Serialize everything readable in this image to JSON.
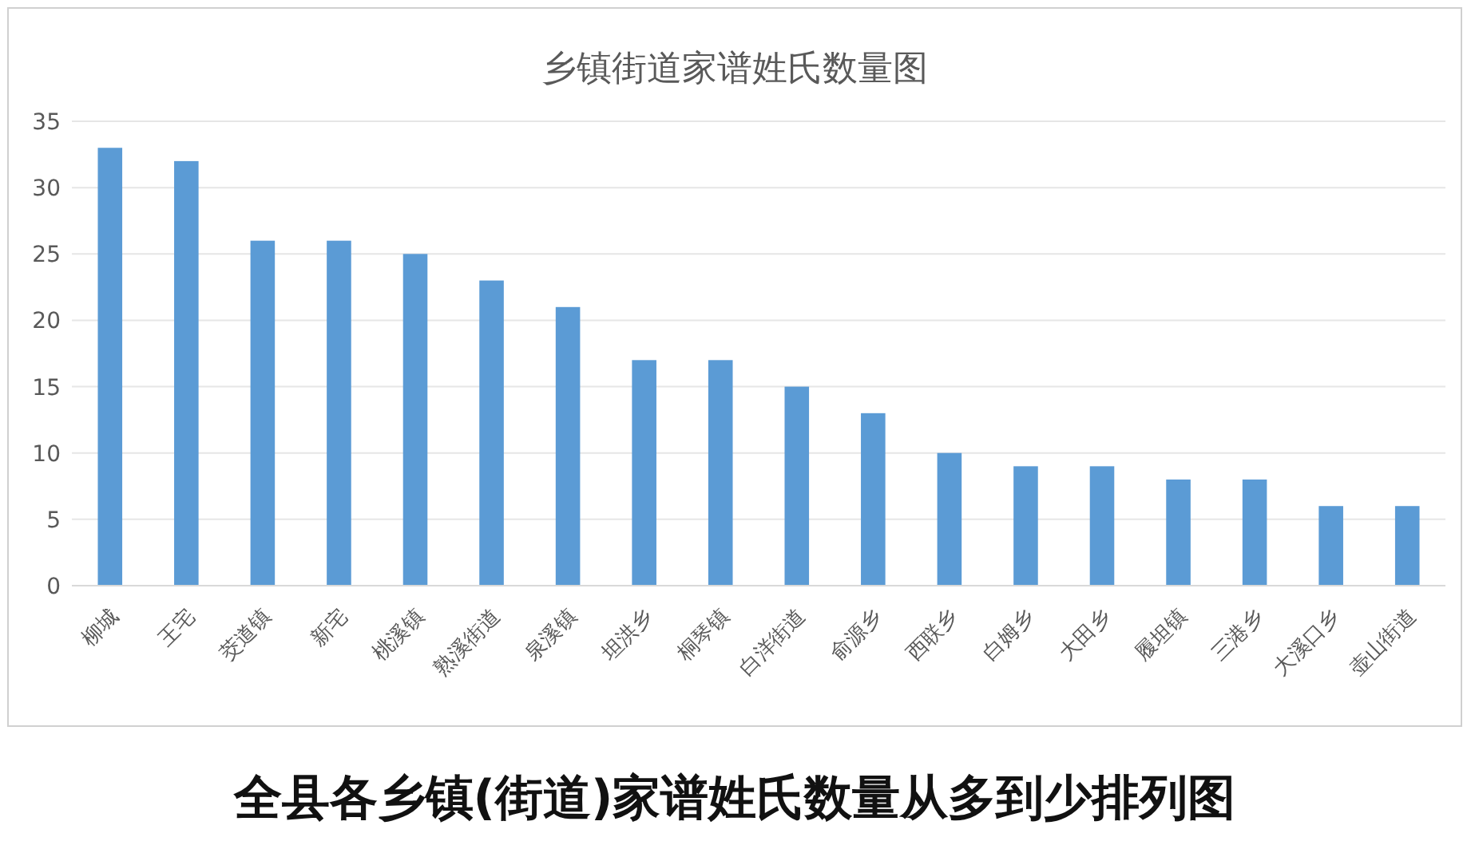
{
  "chart_data": {
    "type": "bar",
    "title": "乡镇街道家谱姓氏数量图",
    "categories": [
      "柳城",
      "王宅",
      "茭道镇",
      "新宅",
      "桃溪镇",
      "熟溪街道",
      "泉溪镇",
      "坦洪乡",
      "桐琴镇",
      "白洋街道",
      "俞源乡",
      "西联乡",
      "白姆乡",
      "大田乡",
      "履坦镇",
      "三港乡",
      "大溪口乡",
      "壶山街道"
    ],
    "values": [
      33,
      32,
      26,
      26,
      25,
      23,
      21,
      17,
      17,
      15,
      13,
      10,
      9,
      9,
      8,
      8,
      6,
      6
    ],
    "color": "#5b9bd5",
    "ylim": [
      0,
      35
    ],
    "yticks": [
      0,
      5,
      10,
      15,
      20,
      25,
      30,
      35
    ],
    "grid": "y",
    "annotations": [
      "全县各乡镇(街道)家谱姓氏数量从多到少排列图"
    ]
  }
}
